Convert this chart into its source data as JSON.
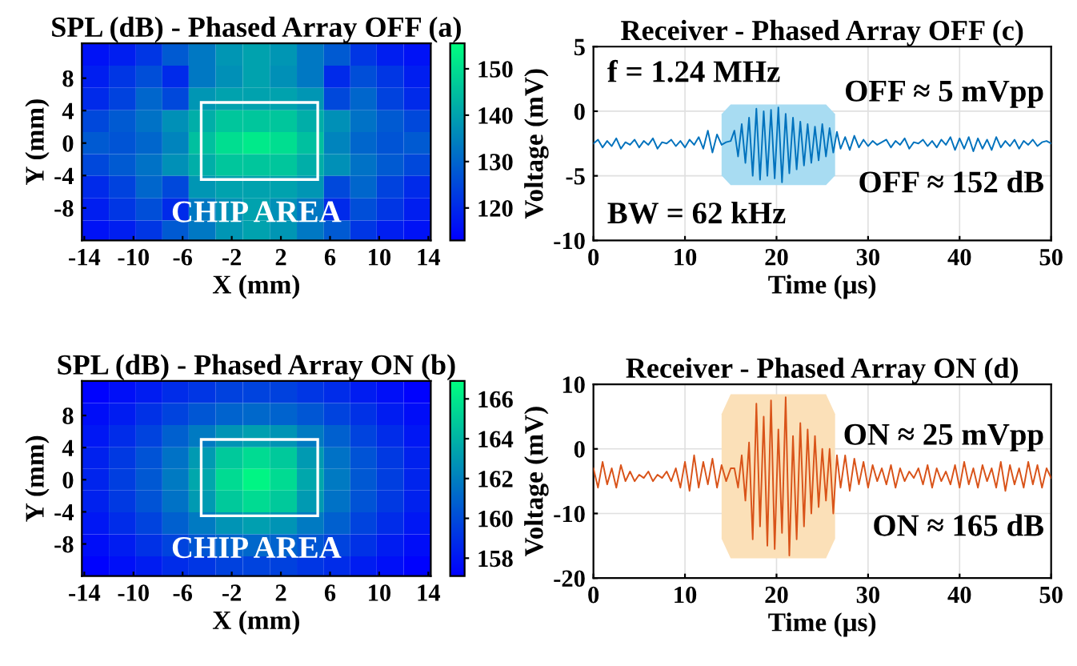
{
  "chart_data": [
    {
      "type": "heatmap",
      "title": "SPL (dB) - Phased Array OFF (a)",
      "xlabel": "X (mm)",
      "ylabel": "Y (mm)",
      "x": [
        -13.1,
        -10.9,
        -8.7,
        -6.6,
        -4.4,
        -2.2,
        0,
        2.2,
        4.4,
        6.6,
        8.7,
        10.9,
        13.1
      ],
      "y": [
        10.9,
        8.2,
        5.4,
        2.7,
        0,
        -2.7,
        -5.4,
        -8.2,
        -10.9
      ],
      "cells": [
        [
          116,
          118,
          122,
          128,
          133,
          138,
          140,
          138,
          133,
          128,
          122,
          118,
          116
        ],
        [
          118,
          122,
          126,
          120,
          133,
          137,
          140,
          137,
          133,
          120,
          126,
          122,
          118
        ],
        [
          120,
          124,
          130,
          125,
          138,
          140,
          140,
          140,
          138,
          125,
          130,
          124,
          120
        ],
        [
          125,
          128,
          132,
          137,
          142,
          146,
          146,
          146,
          142,
          137,
          132,
          128,
          125
        ],
        [
          128,
          127,
          130,
          135,
          145,
          150,
          152,
          150,
          145,
          135,
          130,
          127,
          128
        ],
        [
          125,
          128,
          132,
          137,
          142,
          146,
          146,
          146,
          142,
          137,
          132,
          128,
          125
        ],
        [
          120,
          124,
          130,
          125,
          138,
          140,
          140,
          140,
          138,
          125,
          130,
          124,
          120
        ],
        [
          118,
          122,
          126,
          120,
          133,
          137,
          140,
          137,
          133,
          120,
          126,
          122,
          118
        ],
        [
          116,
          118,
          122,
          128,
          133,
          138,
          140,
          138,
          133,
          128,
          122,
          118,
          116
        ]
      ],
      "xlim": [
        -14.2,
        14.2
      ],
      "xticks": [
        -14,
        -10,
        -6,
        -2,
        2,
        6,
        10,
        14
      ],
      "ylim": [
        -12,
        12.3
      ],
      "yticks": [
        -8,
        -4,
        0,
        4,
        8
      ],
      "clim": [
        113,
        155.5
      ],
      "cticks": [
        120,
        130,
        140,
        150
      ],
      "grid": false,
      "annotations": [
        "CHIP AREA"
      ]
    },
    {
      "type": "line",
      "title": "Receiver - Phased Array OFF (c)",
      "xlabel": "Time (μs)",
      "ylabel": "Voltage (mV)",
      "x": [
        0,
        0.5,
        1,
        1.5,
        2,
        2.5,
        3,
        3.5,
        4,
        4.5,
        5,
        5.5,
        6,
        6.5,
        7,
        7.5,
        8,
        8.5,
        9,
        9.5,
        10,
        10.5,
        11,
        11.5,
        12,
        12.5,
        13,
        13.5,
        14,
        14.5,
        15,
        15.4,
        15.8,
        16.2,
        16.6,
        17,
        17.4,
        17.8,
        18.2,
        18.6,
        19,
        19.4,
        19.8,
        20.2,
        20.6,
        21,
        21.4,
        21.8,
        22.2,
        22.6,
        23,
        23.4,
        23.8,
        24.2,
        24.6,
        25,
        25.4,
        25.8,
        26.2,
        26.6,
        27,
        27.5,
        28,
        28.5,
        29,
        29.5,
        30,
        30.5,
        31,
        31.5,
        32,
        32.5,
        33,
        33.5,
        34,
        34.5,
        35,
        35.5,
        36,
        36.5,
        37,
        37.5,
        38,
        38.5,
        39,
        39.5,
        40,
        40.5,
        41,
        41.5,
        42,
        42.5,
        43,
        43.5,
        44,
        44.5,
        45,
        45.5,
        46,
        46.5,
        47,
        47.5,
        48,
        48.5,
        49,
        49.5,
        50
      ],
      "series": [
        {
          "color": "#0072bd",
          "values": [
            -2.5,
            -2.2,
            -2.8,
            -2.3,
            -2.7,
            -2.1,
            -2.9,
            -2.4,
            -2.6,
            -2.2,
            -2.8,
            -2.3,
            -2.6,
            -2.1,
            -2.9,
            -2.4,
            -2.5,
            -2.2,
            -2.7,
            -2.3,
            -2.8,
            -2.2,
            -2.6,
            -2.0,
            -2.9,
            -1.5,
            -3.2,
            -1.8,
            -2.6,
            -2.4,
            -2.3,
            -1.5,
            -3.5,
            -1.0,
            -4.0,
            -0.5,
            -5.0,
            0.2,
            -5.3,
            0.0,
            -5.0,
            0.1,
            -5.2,
            0.3,
            -5.5,
            -0.2,
            -4.8,
            -0.5,
            -4.5,
            -0.8,
            -4.2,
            -1.0,
            -4.0,
            -1.2,
            -3.8,
            -1.0,
            -3.5,
            -1.3,
            -3.2,
            -1.6,
            -2.9,
            -2.0,
            -3.0,
            -1.9,
            -2.8,
            -2.2,
            -2.7,
            -2.3,
            -2.6,
            -2.4,
            -2.2,
            -2.8,
            -2.3,
            -2.6,
            -2.1,
            -2.9,
            -2.4,
            -2.5,
            -2.2,
            -2.7,
            -2.3,
            -2.8,
            -2.2,
            -2.6,
            -2.0,
            -3.0,
            -2.1,
            -2.9,
            -2.0,
            -3.1,
            -2.1,
            -2.9,
            -2.2,
            -3.0,
            -2.0,
            -2.8,
            -2.3,
            -2.7,
            -2.2,
            -2.9,
            -2.3,
            -2.6,
            -2.2,
            -2.7,
            -2.4,
            -2.3,
            -2.5
          ]
        }
      ],
      "xlim": [
        0,
        50
      ],
      "xticks": [
        0,
        10,
        20,
        30,
        40,
        50
      ],
      "ylim": [
        -10,
        5
      ],
      "yticks": [
        -10,
        -5,
        0,
        5
      ],
      "grid": true,
      "bands": [
        {
          "axis": "x",
          "from": 14,
          "to": 26.4,
          "color": "#a8dcf2"
        }
      ],
      "annotations": [
        "f = 1.24 MHz",
        "OFF ≈ 5 mVpp",
        "BW = 62 kHz",
        "OFF ≈ 152 dB"
      ]
    },
    {
      "type": "heatmap",
      "title": "SPL (dB) - Phased Array ON (b)",
      "xlabel": "X (mm)",
      "ylabel": "Y (mm)",
      "x": [
        -13.1,
        -10.9,
        -8.7,
        -6.6,
        -4.4,
        -2.2,
        0,
        2.2,
        4.4,
        6.6,
        8.7,
        10.9,
        13.1
      ],
      "y": [
        10.9,
        8.2,
        5.4,
        2.7,
        0,
        -2.7,
        -5.4,
        -8.2,
        -10.9
      ],
      "cells": [
        [
          157.2,
          157.7,
          158.2,
          158.8,
          159.2,
          159.6,
          159.7,
          159.6,
          159.2,
          158.8,
          158.2,
          157.7,
          157.2
        ],
        [
          157.6,
          158.2,
          159,
          159.7,
          160.4,
          160.9,
          161.1,
          160.9,
          160.4,
          159.7,
          159,
          158.2,
          157.6
        ],
        [
          158,
          158.8,
          159.7,
          160.8,
          161.8,
          162.8,
          163.2,
          162.8,
          161.8,
          160.8,
          159.7,
          158.8,
          158
        ],
        [
          158.4,
          159.3,
          160.3,
          161.5,
          163,
          164.8,
          165.5,
          164.8,
          163,
          161.5,
          160.3,
          159.3,
          158.4
        ],
        [
          158.5,
          159.5,
          160.5,
          161.8,
          163.5,
          165.5,
          166.5,
          165.5,
          163.5,
          161.8,
          160.5,
          159.5,
          158.5
        ],
        [
          158.4,
          159.3,
          160.3,
          161.5,
          163,
          164.8,
          165.5,
          164.8,
          163,
          161.5,
          160.3,
          159.3,
          158.4
        ],
        [
          158,
          158.8,
          159.7,
          160.8,
          161.8,
          162.8,
          163.2,
          162.8,
          161.8,
          160.8,
          159.7,
          158.8,
          158
        ],
        [
          157.6,
          158.2,
          159,
          159.7,
          160.4,
          160.9,
          161.1,
          160.9,
          160.4,
          159.7,
          159,
          158.2,
          157.6
        ],
        [
          157.2,
          157.7,
          158.2,
          158.8,
          159.2,
          159.6,
          159.7,
          159.6,
          159.2,
          158.8,
          158.2,
          157.7,
          157.2
        ]
      ],
      "xlim": [
        -14.2,
        14.2
      ],
      "xticks": [
        -14,
        -10,
        -6,
        -2,
        2,
        6,
        10,
        14
      ],
      "ylim": [
        -12,
        12.3
      ],
      "yticks": [
        -8,
        -4,
        0,
        4,
        8
      ],
      "clim": [
        157.1,
        166.9
      ],
      "cticks": [
        158,
        160,
        162,
        164,
        166
      ],
      "grid": false,
      "annotations": [
        "CHIP AREA"
      ]
    },
    {
      "type": "line",
      "title": "Receiver - Phased Array ON (d)",
      "xlabel": "Time (μs)",
      "ylabel": "Voltage (mV)",
      "x": [
        0,
        0.5,
        1,
        1.5,
        2,
        2.5,
        3,
        3.5,
        4,
        4.5,
        5,
        5.5,
        6,
        6.5,
        7,
        7.5,
        8,
        8.5,
        9,
        9.5,
        10,
        10.5,
        11,
        11.5,
        12,
        12.5,
        13,
        13.5,
        14,
        14.5,
        15,
        15.4,
        15.8,
        16.2,
        16.6,
        17,
        17.4,
        17.8,
        18.2,
        18.6,
        19,
        19.4,
        19.8,
        20.2,
        20.6,
        21,
        21.4,
        21.8,
        22.2,
        22.6,
        23,
        23.4,
        23.8,
        24.2,
        24.6,
        25,
        25.4,
        25.8,
        26.2,
        26.6,
        27,
        27.5,
        28,
        28.5,
        29,
        29.5,
        30,
        30.5,
        31,
        31.5,
        32,
        32.5,
        33,
        33.5,
        34,
        34.5,
        35,
        35.5,
        36,
        36.5,
        37,
        37.5,
        38,
        38.5,
        39,
        39.5,
        40,
        40.5,
        41,
        41.5,
        42,
        42.5,
        43,
        43.5,
        44,
        44.5,
        45,
        45.5,
        46,
        46.5,
        47,
        47.5,
        48,
        48.5,
        49,
        49.5,
        50
      ],
      "series": [
        {
          "color": "#d95319",
          "values": [
            -3,
            -6,
            -2,
            -5.5,
            -3,
            -6,
            -2.5,
            -5,
            -3.5,
            -5,
            -4,
            -4.5,
            -3.5,
            -5,
            -4,
            -4.5,
            -3.5,
            -5,
            -3,
            -6,
            -2,
            -6.5,
            -1,
            -6,
            -2,
            -5.5,
            -1.5,
            -6,
            -2.5,
            -5,
            -3,
            -3,
            -6,
            -1,
            -8,
            1,
            -14,
            7,
            -12,
            5,
            -15,
            7.5,
            -15.5,
            3,
            -13,
            8,
            -16.5,
            2,
            -14,
            4,
            -12,
            3,
            -10,
            2,
            -9,
            0,
            -8,
            0,
            -10,
            -1,
            -6,
            -1,
            -6.5,
            -1.5,
            -5.5,
            -2,
            -6,
            -2.5,
            -5,
            -3,
            -5.5,
            -2.5,
            -6,
            -3,
            -5,
            -3.5,
            -4.5,
            -3,
            -5.5,
            -2.5,
            -6,
            -3,
            -5,
            -3.5,
            -5.5,
            -2.5,
            -6,
            -2,
            -5.5,
            -3,
            -6,
            -2.5,
            -5,
            -3,
            -6,
            -2,
            -6.5,
            -2.5,
            -5.5,
            -3,
            -6,
            -2,
            -5.5,
            -2.5,
            -6,
            -3,
            -4.5
          ]
        }
      ],
      "xlim": [
        0,
        50
      ],
      "xticks": [
        0,
        10,
        20,
        30,
        40,
        50
      ],
      "ylim": [
        -20,
        10
      ],
      "yticks": [
        -20,
        -10,
        0,
        10
      ],
      "grid": true,
      "bands": [
        {
          "axis": "x",
          "from": 14,
          "to": 26.4,
          "color": "#fbe0b8"
        }
      ],
      "annotations": [
        "ON ≈ 25 mVpp",
        "ON ≈ 165 dB"
      ]
    }
  ]
}
